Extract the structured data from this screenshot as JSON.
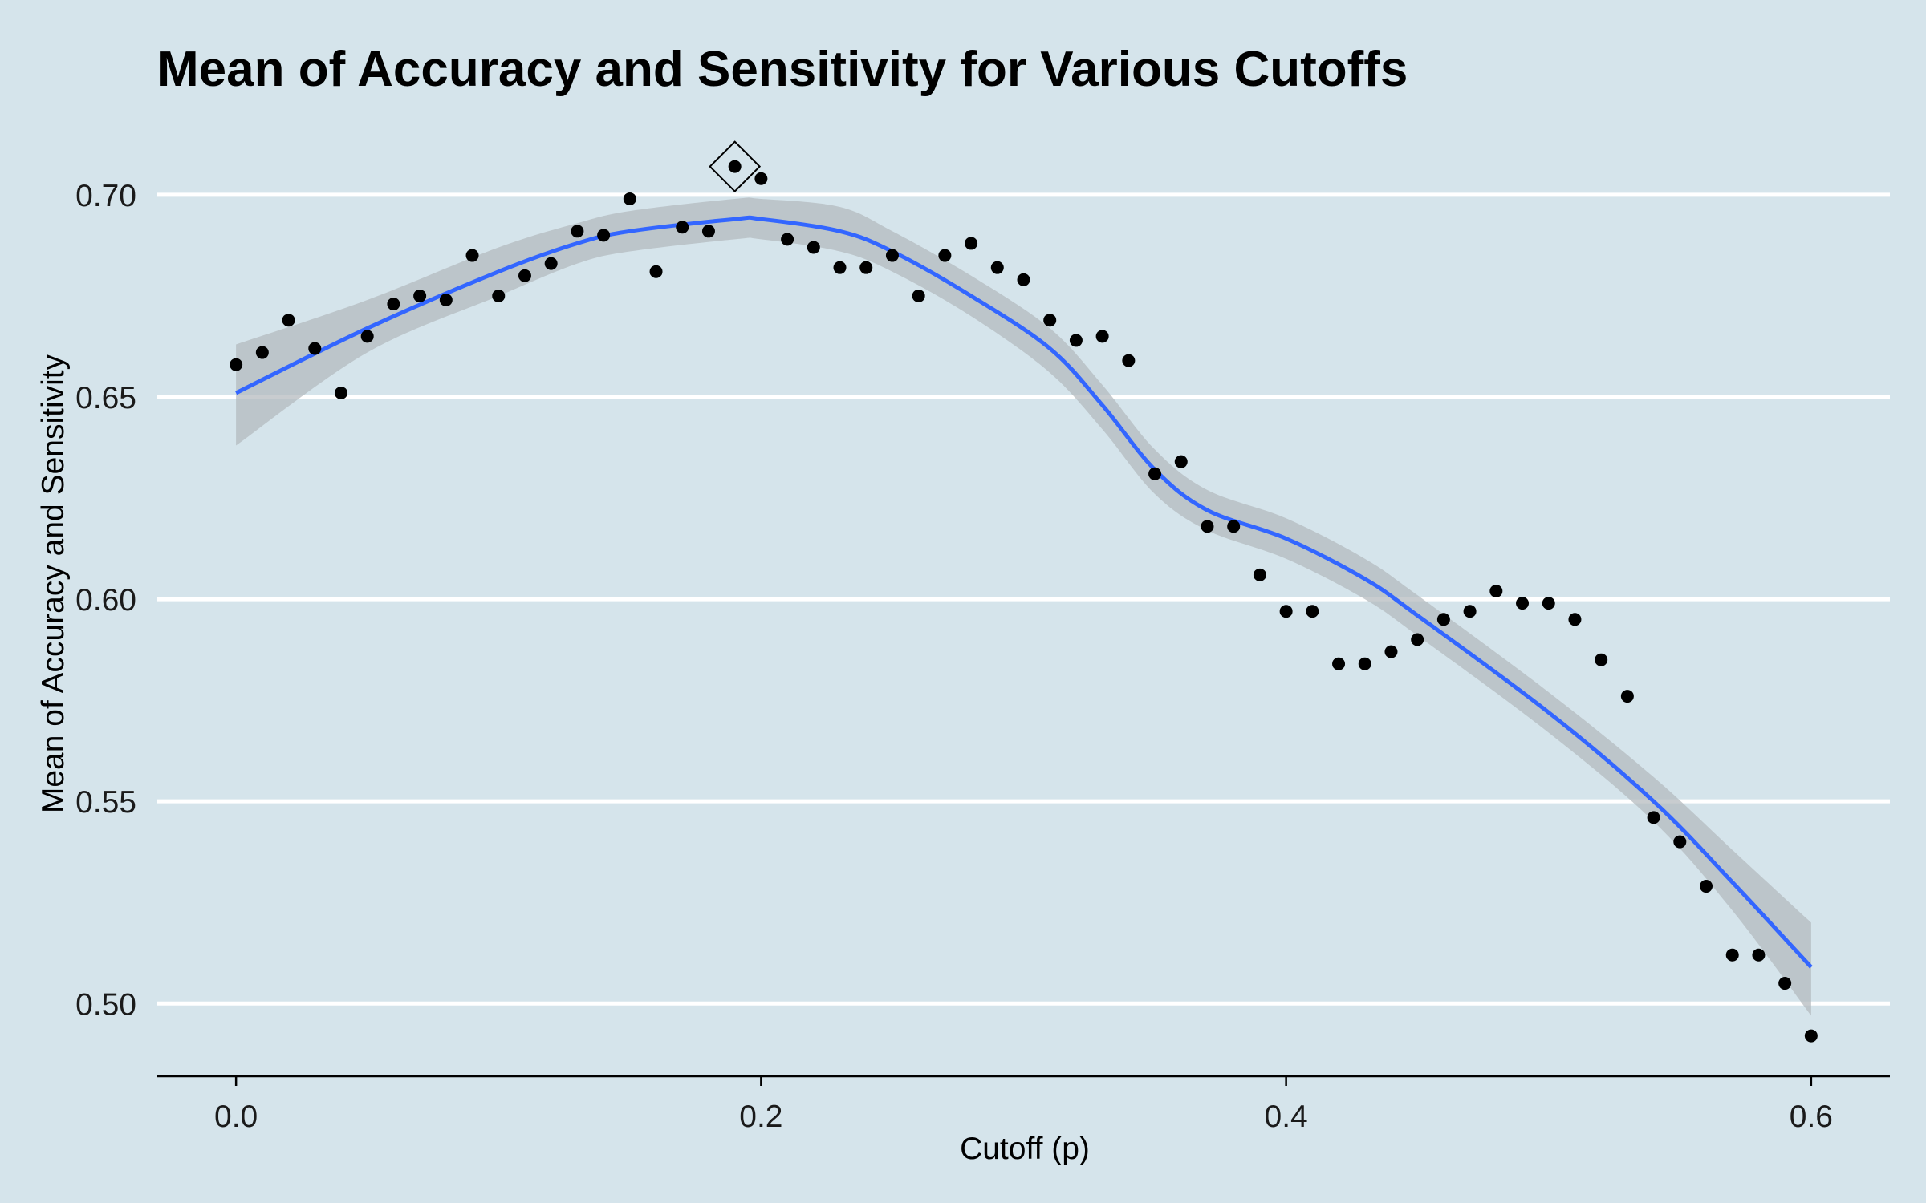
{
  "colors": {
    "background": "#d5e4eb",
    "gridline": "#ffffff",
    "points": "#000000",
    "smooth_line": "#3366ff",
    "confidence_band": "#b3b8bd"
  },
  "chart_data": {
    "type": "scatter",
    "title": "Mean of Accuracy and Sensitivity for Various Cutoffs",
    "xlabel": "Cutoff (p)",
    "ylabel": "Mean of Accuracy and Sensitivity",
    "xlim": [
      -0.03,
      0.63
    ],
    "ylim": [
      0.482,
      0.722
    ],
    "x_ticks": [
      0.0,
      0.2,
      0.4,
      0.6
    ],
    "x_tick_labels": [
      "0.0",
      "0.2",
      "0.4",
      "0.6"
    ],
    "y_ticks": [
      0.5,
      0.55,
      0.6,
      0.65,
      0.7
    ],
    "y_tick_labels": [
      "0.50",
      "0.55",
      "0.60",
      "0.65",
      "0.70"
    ],
    "grid": "horizontal-major",
    "points": [
      {
        "x": 0.0,
        "y": 0.658
      },
      {
        "x": 0.01,
        "y": 0.661
      },
      {
        "x": 0.02,
        "y": 0.669
      },
      {
        "x": 0.03,
        "y": 0.662
      },
      {
        "x": 0.04,
        "y": 0.651
      },
      {
        "x": 0.05,
        "y": 0.665
      },
      {
        "x": 0.06,
        "y": 0.673
      },
      {
        "x": 0.07,
        "y": 0.675
      },
      {
        "x": 0.08,
        "y": 0.674
      },
      {
        "x": 0.09,
        "y": 0.685
      },
      {
        "x": 0.1,
        "y": 0.675
      },
      {
        "x": 0.11,
        "y": 0.68
      },
      {
        "x": 0.12,
        "y": 0.683
      },
      {
        "x": 0.13,
        "y": 0.691
      },
      {
        "x": 0.14,
        "y": 0.69
      },
      {
        "x": 0.15,
        "y": 0.699
      },
      {
        "x": 0.16,
        "y": 0.681
      },
      {
        "x": 0.17,
        "y": 0.692
      },
      {
        "x": 0.18,
        "y": 0.691
      },
      {
        "x": 0.19,
        "y": 0.707
      },
      {
        "x": 0.2,
        "y": 0.704
      },
      {
        "x": 0.21,
        "y": 0.689
      },
      {
        "x": 0.22,
        "y": 0.687
      },
      {
        "x": 0.23,
        "y": 0.682
      },
      {
        "x": 0.24,
        "y": 0.682
      },
      {
        "x": 0.25,
        "y": 0.685
      },
      {
        "x": 0.26,
        "y": 0.675
      },
      {
        "x": 0.27,
        "y": 0.685
      },
      {
        "x": 0.28,
        "y": 0.688
      },
      {
        "x": 0.29,
        "y": 0.682
      },
      {
        "x": 0.3,
        "y": 0.679
      },
      {
        "x": 0.31,
        "y": 0.669
      },
      {
        "x": 0.32,
        "y": 0.664
      },
      {
        "x": 0.33,
        "y": 0.665
      },
      {
        "x": 0.34,
        "y": 0.659
      },
      {
        "x": 0.35,
        "y": 0.631
      },
      {
        "x": 0.36,
        "y": 0.634
      },
      {
        "x": 0.37,
        "y": 0.618
      },
      {
        "x": 0.38,
        "y": 0.618
      },
      {
        "x": 0.39,
        "y": 0.606
      },
      {
        "x": 0.4,
        "y": 0.597
      },
      {
        "x": 0.41,
        "y": 0.597
      },
      {
        "x": 0.42,
        "y": 0.584
      },
      {
        "x": 0.43,
        "y": 0.584
      },
      {
        "x": 0.44,
        "y": 0.587
      },
      {
        "x": 0.45,
        "y": 0.59
      },
      {
        "x": 0.46,
        "y": 0.595
      },
      {
        "x": 0.47,
        "y": 0.597
      },
      {
        "x": 0.48,
        "y": 0.602
      },
      {
        "x": 0.49,
        "y": 0.599
      },
      {
        "x": 0.5,
        "y": 0.599
      },
      {
        "x": 0.51,
        "y": 0.595
      },
      {
        "x": 0.52,
        "y": 0.585
      },
      {
        "x": 0.53,
        "y": 0.576
      },
      {
        "x": 0.54,
        "y": 0.546
      },
      {
        "x": 0.55,
        "y": 0.54
      },
      {
        "x": 0.56,
        "y": 0.529
      },
      {
        "x": 0.57,
        "y": 0.512
      },
      {
        "x": 0.58,
        "y": 0.512
      },
      {
        "x": 0.59,
        "y": 0.505
      },
      {
        "x": 0.6,
        "y": 0.492
      }
    ],
    "highlight": {
      "x": 0.19,
      "y": 0.707,
      "marker": "diamond-outline"
    },
    "smooth_fit": [
      {
        "x": 0.0,
        "y": 0.651,
        "lo": 0.638,
        "hi": 0.663
      },
      {
        "x": 0.05,
        "y": 0.667,
        "lo": 0.661,
        "hi": 0.674
      },
      {
        "x": 0.1,
        "y": 0.681,
        "lo": 0.675,
        "hi": 0.687
      },
      {
        "x": 0.13,
        "y": 0.688,
        "lo": 0.683,
        "hi": 0.693
      },
      {
        "x": 0.15,
        "y": 0.691,
        "lo": 0.686,
        "hi": 0.696
      },
      {
        "x": 0.19,
        "y": 0.694,
        "lo": 0.689,
        "hi": 0.699
      },
      {
        "x": 0.2,
        "y": 0.694,
        "lo": 0.689,
        "hi": 0.699
      },
      {
        "x": 0.23,
        "y": 0.691,
        "lo": 0.686,
        "hi": 0.697
      },
      {
        "x": 0.25,
        "y": 0.686,
        "lo": 0.681,
        "hi": 0.691
      },
      {
        "x": 0.28,
        "y": 0.675,
        "lo": 0.67,
        "hi": 0.68
      },
      {
        "x": 0.31,
        "y": 0.662,
        "lo": 0.656,
        "hi": 0.667
      },
      {
        "x": 0.33,
        "y": 0.648,
        "lo": 0.642,
        "hi": 0.653
      },
      {
        "x": 0.35,
        "y": 0.632,
        "lo": 0.626,
        "hi": 0.637
      },
      {
        "x": 0.37,
        "y": 0.622,
        "lo": 0.617,
        "hi": 0.627
      },
      {
        "x": 0.4,
        "y": 0.615,
        "lo": 0.61,
        "hi": 0.62
      },
      {
        "x": 0.43,
        "y": 0.605,
        "lo": 0.6,
        "hi": 0.61
      },
      {
        "x": 0.45,
        "y": 0.596,
        "lo": 0.591,
        "hi": 0.601
      },
      {
        "x": 0.5,
        "y": 0.572,
        "lo": 0.567,
        "hi": 0.577
      },
      {
        "x": 0.54,
        "y": 0.55,
        "lo": 0.545,
        "hi": 0.556
      },
      {
        "x": 0.57,
        "y": 0.53,
        "lo": 0.523,
        "hi": 0.538
      },
      {
        "x": 0.6,
        "y": 0.509,
        "lo": 0.497,
        "hi": 0.52
      }
    ]
  }
}
